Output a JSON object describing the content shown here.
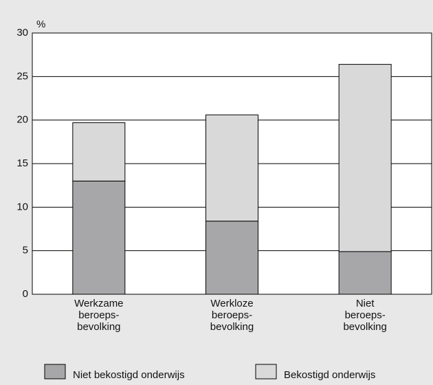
{
  "chart_data": {
    "type": "stacked_bar",
    "y_label": "%",
    "categories": [
      [
        "Werkzame",
        "beroeps-",
        "bevolking"
      ],
      [
        "Werkloze",
        "beroeps-",
        "bevolking"
      ],
      [
        "Niet",
        "beroeps-",
        "bevolking"
      ]
    ],
    "series": [
      {
        "name": "Niet bekostigd onderwijs",
        "color": "#a7a7a9",
        "values": [
          13.0,
          8.4,
          4.9
        ]
      },
      {
        "name": "Bekostigd onderwijs",
        "color": "#d9d9d9",
        "values": [
          6.7,
          12.2,
          21.5
        ]
      }
    ],
    "ylim": [
      0,
      30
    ],
    "yticks": [
      0,
      5,
      10,
      15,
      20,
      25,
      30
    ],
    "grid": true
  }
}
